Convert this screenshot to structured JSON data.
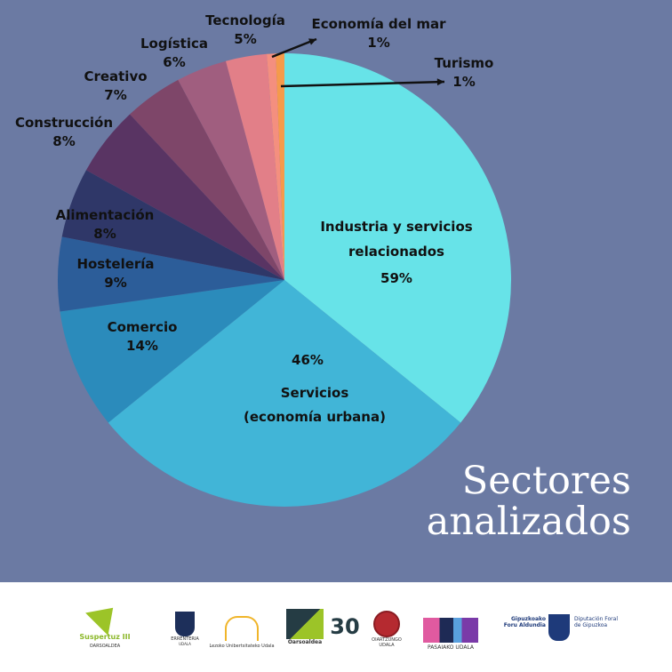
{
  "chart_data": {
    "type": "pie",
    "title": "Sectores analizados",
    "slices": [
      {
        "label": "Industria y servicios relacionados",
        "value": 59,
        "display": "59%",
        "color": "#67e3e8"
      },
      {
        "label": "Servicios (economía urbana)",
        "value": 46,
        "display": "46%",
        "color": "#41b5d7"
      },
      {
        "label": "Comercio",
        "value": 14,
        "display": "14%",
        "color": "#2b8bbb"
      },
      {
        "label": "Hostelería",
        "value": 9,
        "display": "9%",
        "color": "#2c5d99"
      },
      {
        "label": "Alimentación",
        "value": 8,
        "display": "8%",
        "color": "#2f3768"
      },
      {
        "label": "Construcción",
        "value": 8,
        "display": "8%",
        "color": "#593463"
      },
      {
        "label": "Creativo",
        "value": 7,
        "display": "7%",
        "color": "#7e4669"
      },
      {
        "label": "Logística",
        "value": 6,
        "display": "6%",
        "color": "#a05e7f"
      },
      {
        "label": "Tecnología",
        "value": 5,
        "display": "5%",
        "color": "#e27f88"
      },
      {
        "label": "Economía del mar",
        "value": 1,
        "display": "1%",
        "color": "#f48f7f"
      },
      {
        "label": "Turismo",
        "value": 1,
        "display": "1%",
        "color": "#f59a4b"
      }
    ]
  },
  "title": {
    "line1": "Sectores",
    "line2": "analizados"
  },
  "labels": {
    "industria": [
      "Industria y servicios",
      "relacionados"
    ],
    "servicios": [
      "Servicios",
      "(economía urbana)"
    ]
  },
  "footer": {
    "suspertuz": "Suspertuz III",
    "suspertuz_sub": "OARSOALDEA",
    "errenteria": "ERRENTERIA",
    "errenteria_sub": "UDALA",
    "lezo": "Lezoko Unibertsitateko Udala",
    "oarsoaldea": "Oarsoaldea",
    "thirty": "30",
    "oiartzun": "OIARTZUNGO",
    "oiartzun_sub": "UDALA",
    "pasaia": "PASAIAKO UDALA",
    "gipuzkoa": "Gipuzkoako Foru Aldundia",
    "diputacion": "Diputación Foral de Gipuzkoa"
  }
}
